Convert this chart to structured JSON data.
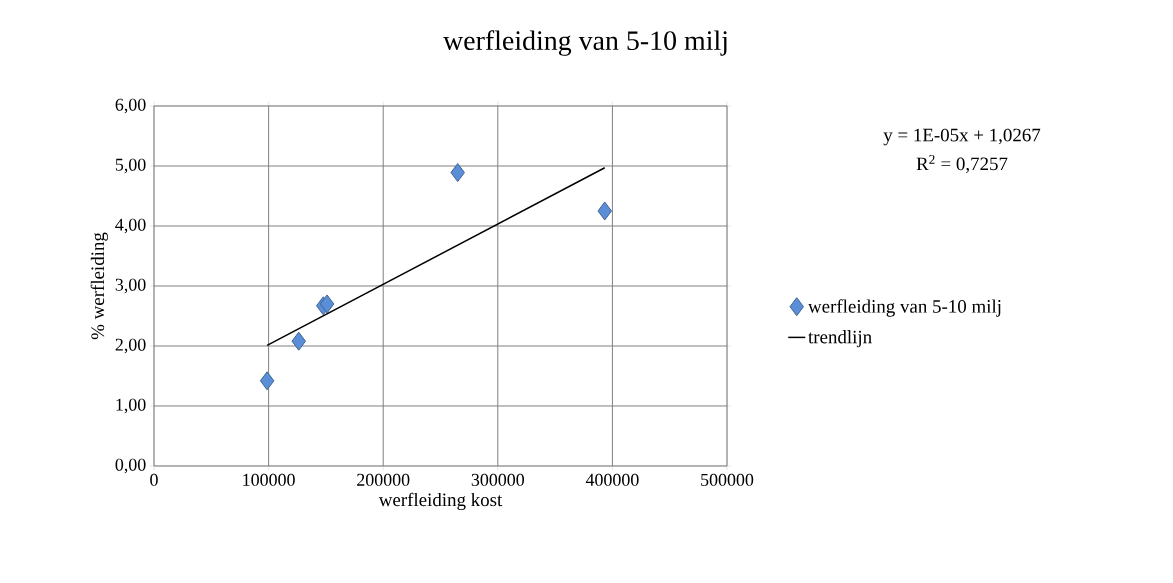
{
  "chart_data": {
    "type": "scatter",
    "title": "werfleiding van 5-10 milj",
    "xlabel": "werfleiding kost",
    "ylabel": "% werfleiding",
    "series": [
      {
        "name": "werfleiding van 5-10 milj",
        "type": "scatter",
        "color": "#5a8ed6",
        "marker": "diamond",
        "x": [
          98700,
          126300,
          147700,
          151000,
          265000,
          393300
        ],
        "values": [
          1.42,
          2.08,
          2.67,
          2.7,
          4.89,
          4.25
        ]
      },
      {
        "name": "trendlijn",
        "type": "line",
        "color": "#000000",
        "marker": "none",
        "line_style": "solid",
        "x": [
          98700,
          393300
        ],
        "values": [
          2.01,
          4.97
        ]
      }
    ],
    "xlim": [
      0,
      500000
    ],
    "xticks": [
      0,
      100000,
      200000,
      300000,
      400000,
      500000
    ],
    "ylim": [
      0,
      6
    ],
    "yticks": [
      {
        "value": 0,
        "label": "0,00"
      },
      {
        "value": 1,
        "label": "1,00"
      },
      {
        "value": 2,
        "label": "2,00"
      },
      {
        "value": 3,
        "label": "3,00"
      },
      {
        "value": 4,
        "label": "4,00"
      },
      {
        "value": 5,
        "label": "5,00"
      },
      {
        "value": 6,
        "label": "6,00"
      }
    ],
    "grid": true,
    "legend": "right",
    "annotations": [
      "y = 1E-05x + 1,0267",
      "R$^{2}$ = 0,7257"
    ]
  }
}
